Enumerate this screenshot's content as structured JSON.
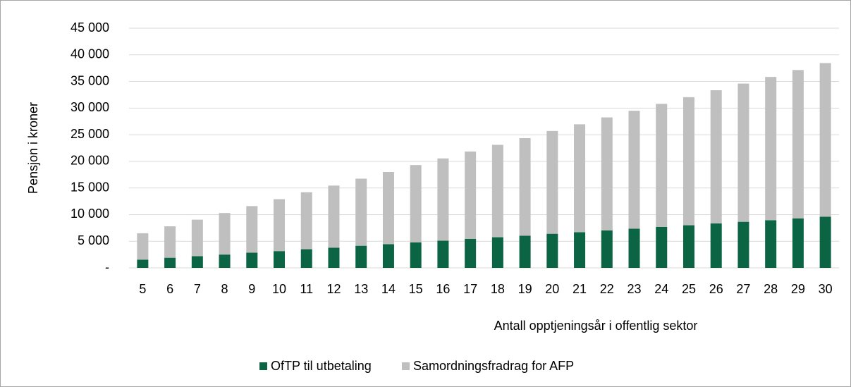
{
  "chart_data": {
    "type": "stacked_bar",
    "y_axis_label": "Pensjon i kroner",
    "x_axis_label": "Antall opptjeningsår i offentlig sektor",
    "categories": [
      "5",
      "6",
      "7",
      "8",
      "9",
      "10",
      "11",
      "12",
      "13",
      "14",
      "15",
      "16",
      "17",
      "18",
      "19",
      "20",
      "21",
      "22",
      "23",
      "24",
      "25",
      "26",
      "27",
      "28",
      "29",
      "30"
    ],
    "series": [
      {
        "name": "OfTP til utbetaling",
        "color": "#0b6443",
        "values": [
          1550,
          1900,
          2200,
          2500,
          2850,
          3150,
          3500,
          3800,
          4150,
          4450,
          4800,
          5100,
          5450,
          5750,
          6050,
          6400,
          6700,
          7050,
          7350,
          7700,
          8000,
          8350,
          8650,
          8950,
          9300,
          9600
        ]
      },
      {
        "name": "Samordningsfradrag for AFP",
        "color": "#bfbfbf",
        "values": [
          4950,
          5900,
          6850,
          7800,
          8750,
          9750,
          10700,
          11650,
          12600,
          13550,
          14500,
          15450,
          16400,
          17350,
          18300,
          19300,
          20250,
          21200,
          22150,
          23100,
          24050,
          25000,
          25950,
          26900,
          27850,
          28850
        ]
      }
    ],
    "ylim": [
      0,
      45000
    ],
    "yticks": [
      {
        "value": 0,
        "label": "-"
      },
      {
        "value": 5000,
        "label": "5 000"
      },
      {
        "value": 10000,
        "label": "10 000"
      },
      {
        "value": 15000,
        "label": "15 000"
      },
      {
        "value": 20000,
        "label": "20 000"
      },
      {
        "value": 25000,
        "label": "25 000"
      },
      {
        "value": 30000,
        "label": "30 000"
      },
      {
        "value": 35000,
        "label": "35 000"
      },
      {
        "value": 40000,
        "label": "40 000"
      },
      {
        "value": 45000,
        "label": "45 000"
      }
    ],
    "grid": true,
    "legend": "bottom"
  }
}
